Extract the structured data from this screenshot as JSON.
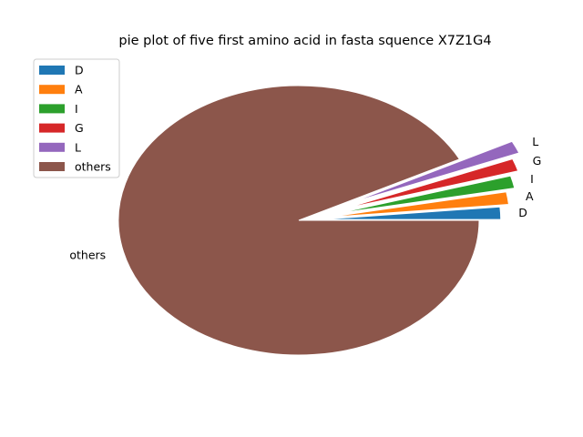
{
  "chart_data": {
    "type": "pie",
    "title": "pie plot of five first amino acid in fasta squence X7Z1G4",
    "slices": [
      {
        "label": "D",
        "value": 1.5,
        "color": "#1f77b4",
        "exploded": true
      },
      {
        "label": "A",
        "value": 1.5,
        "color": "#ff7f0e",
        "exploded": true
      },
      {
        "label": "I",
        "value": 1.5,
        "color": "#2ca02c",
        "exploded": true
      },
      {
        "label": "G",
        "value": 1.5,
        "color": "#d62728",
        "exploded": true
      },
      {
        "label": "L",
        "value": 1.5,
        "color": "#9467bd",
        "exploded": true
      },
      {
        "label": "others",
        "value": 92.5,
        "color": "#8c564b",
        "exploded": false
      }
    ],
    "legend": {
      "placement": "upper-left",
      "entries": [
        "D",
        "A",
        "I",
        "G",
        "L",
        "others"
      ]
    }
  }
}
